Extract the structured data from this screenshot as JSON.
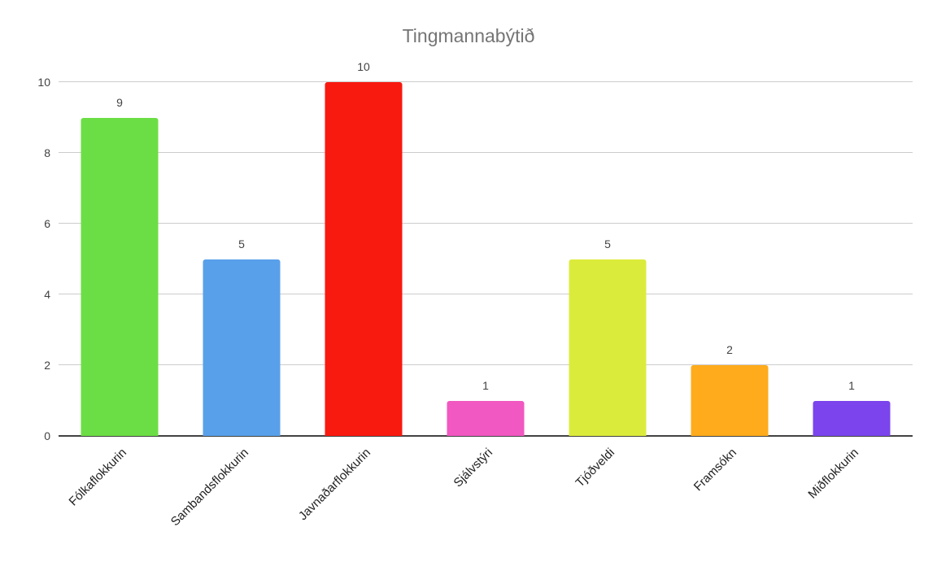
{
  "chart_data": {
    "type": "bar",
    "title": "Tingmannabýtið",
    "categories": [
      "Fólkaflokkurin",
      "Sambandsflokkurin",
      "Javnaðarflokkurin",
      "Sjálvstýri",
      "Tjóðveldi",
      "Framsókn",
      "Miðflokkurin"
    ],
    "values": [
      9,
      5,
      10,
      1,
      5,
      2,
      1
    ],
    "value_labels": [
      "9",
      "5",
      "10",
      "1",
      "5",
      "2",
      "1"
    ],
    "bar_colors": [
      "#6cde45",
      "#59a0ea",
      "#f8190f",
      "#f158c1",
      "#dbeb3c",
      "#ffab1c",
      "#7b44ec"
    ],
    "y_ticks": [
      0,
      2,
      4,
      6,
      8,
      10
    ],
    "y_tick_labels": [
      "0",
      "2",
      "4",
      "6",
      "8",
      "10"
    ],
    "ylim": [
      0,
      10
    ],
    "xlabel": "",
    "ylabel": "",
    "grid": true,
    "legend": false,
    "colors": {
      "title": "#757575",
      "value_label": "#424242",
      "y_tick_label": "#424242",
      "x_label": "#212121",
      "gridline": "#cccccc",
      "baseline": "#424242",
      "background": "#ffffff"
    }
  }
}
